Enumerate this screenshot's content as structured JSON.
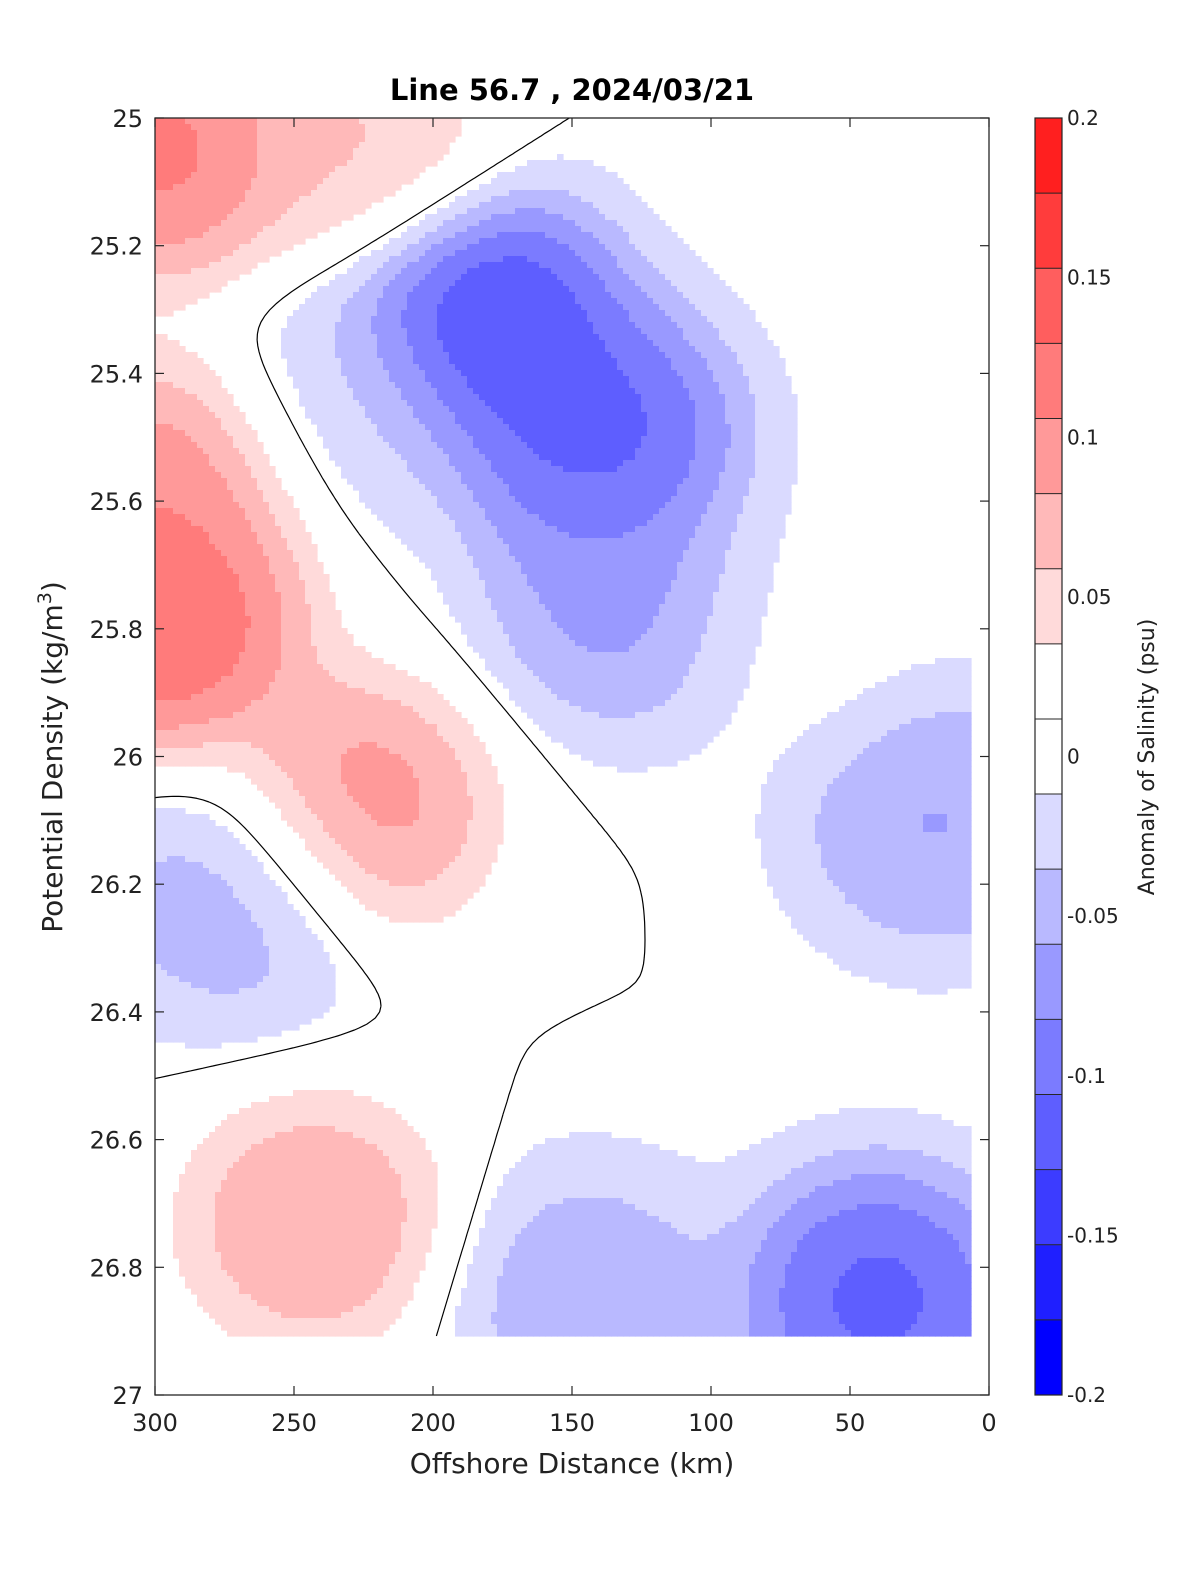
{
  "chart_data": {
    "type": "heatmap",
    "title": "Line 56.7 , 2024/03/21",
    "xlabel": "Offshore Distance (km)",
    "ylabel_main": "Potential Density (kg/m",
    "ylabel_sup": "3",
    "ylabel_close": ")",
    "colorbar_label": "Anomaly of Salinity (psu)",
    "xlim": [
      300,
      0
    ],
    "ylim": [
      25,
      27
    ],
    "x_reversed": true,
    "y_reversed": true,
    "x_ticks": [
      300,
      250,
      200,
      150,
      100,
      50,
      0
    ],
    "x_tick_labels": [
      "300",
      "250",
      "200",
      "150",
      "100",
      "50",
      "0"
    ],
    "y_ticks": [
      25,
      25.2,
      25.4,
      25.6,
      25.8,
      26,
      26.2,
      26.4,
      26.6,
      26.8,
      27
    ],
    "y_tick_labels": [
      "25",
      "25.2",
      "25.4",
      "25.6",
      "25.8",
      "26",
      "26.2",
      "26.4",
      "26.6",
      "26.8",
      "27"
    ],
    "color_limits": [
      -0.2,
      0.2
    ],
    "colorbar_ticks": [
      0.2,
      0.15,
      0.1,
      0.05,
      0,
      -0.05,
      -0.1,
      -0.15,
      -0.2
    ],
    "colorbar_tick_labels": [
      "0.2",
      "0.15",
      "0.1",
      "0.05",
      "0",
      "-0.05",
      "-0.1",
      "-0.15",
      "-0.2"
    ],
    "colormap": [
      "#0000ff",
      "#1f1fff",
      "#3c3cff",
      "#5e5eff",
      "#7b7bff",
      "#9999ff",
      "#b9b9ff",
      "#dadaff",
      "#ffffff",
      "#ffffff",
      "#ffdada",
      "#ffb9b9",
      "#ff9999",
      "#ff7b7b",
      "#ff5e5e",
      "#ff3c3c",
      "#ff1f1f"
    ],
    "background_color": "#ffffff",
    "zero_contour_color": "#000000",
    "data_extent": {
      "x_min_km": 8,
      "x_max_km": 300,
      "sigma_min": 25.0,
      "sigma_max": 26.9
    },
    "anomaly_features": [
      {
        "x_km": 297,
        "sigma": 25.05,
        "value": 0.15
      },
      {
        "x_km": 225,
        "sigma": 25.05,
        "value": 0.08
      },
      {
        "x_km": 294,
        "sigma": 25.58,
        "value": 0.13
      },
      {
        "x_km": 296,
        "sigma": 25.8,
        "value": 0.17
      },
      {
        "x_km": 270,
        "sigma": 26.22,
        "value": -0.07
      },
      {
        "x_km": 228,
        "sigma": 26.08,
        "value": 0.13
      },
      {
        "x_km": 243,
        "sigma": 26.73,
        "value": 0.11
      },
      {
        "x_km": 183,
        "sigma": 25.32,
        "value": -0.18
      },
      {
        "x_km": 140,
        "sigma": 25.5,
        "value": -0.15
      },
      {
        "x_km": 130,
        "sigma": 25.75,
        "value": -0.09
      },
      {
        "x_km": 40,
        "sigma": 26.85,
        "value": -0.15
      },
      {
        "x_km": 145,
        "sigma": 26.85,
        "value": -0.07
      },
      {
        "x_km": 20,
        "sigma": 26.1,
        "value": -0.08
      },
      {
        "x_km": 230,
        "sigma": 25.45,
        "value": -0.03
      },
      {
        "x_km": 70,
        "sigma": 25.8,
        "value": 0.0
      }
    ]
  }
}
